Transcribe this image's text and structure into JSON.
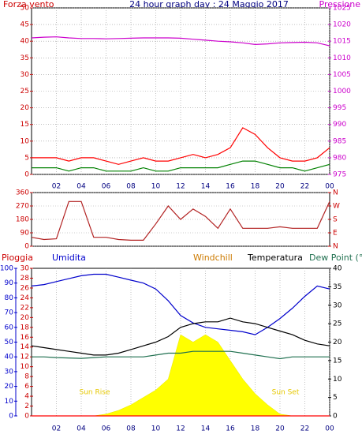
{
  "chart_data": [
    {
      "type": "line",
      "title": "24 hour graph day : 24 Maggio 2017",
      "x": [
        0,
        1,
        2,
        3,
        4,
        5,
        6,
        7,
        8,
        9,
        10,
        11,
        12,
        13,
        14,
        15,
        16,
        17,
        18,
        19,
        20,
        21,
        22,
        23,
        24
      ],
      "xlim": [
        0,
        24
      ],
      "xticks": [
        {
          "value": 2,
          "label": "02"
        },
        {
          "value": 4,
          "label": "04"
        },
        {
          "value": 6,
          "label": "06"
        },
        {
          "value": 8,
          "label": "08"
        },
        {
          "value": 10,
          "label": "10"
        },
        12,
        14,
        16,
        18,
        20,
        22,
        {
          "value": 24,
          "label": "00"
        }
      ],
      "ylim": [
        0,
        50
      ],
      "yticks": [
        0,
        5,
        10,
        15,
        20,
        25,
        30,
        35,
        40,
        45,
        50
      ],
      "ycolor": "#cc0000",
      "y2lim": [
        975,
        1025
      ],
      "y2ticks": [
        975,
        980,
        985,
        990,
        995,
        1000,
        1005,
        1010,
        1015,
        1020,
        1025
      ],
      "y2color": "#cc00cc",
      "grid": "both",
      "series": [
        {
          "name": "Forza vento",
          "color": "#ff0000",
          "values": [
            5,
            5,
            5,
            4,
            5,
            5,
            4,
            3,
            4,
            5,
            4,
            4,
            5,
            6,
            5,
            6,
            8,
            14,
            12,
            8,
            5,
            4,
            4,
            5,
            8
          ]
        },
        {
          "color": "#008000",
          "values": [
            2,
            2,
            2,
            1,
            2,
            2,
            1,
            1,
            1,
            2,
            1,
            1,
            2,
            2,
            2,
            2,
            3,
            4,
            4,
            3,
            2,
            2,
            1,
            2,
            3
          ]
        },
        {
          "name": "Pressione",
          "color": "#cc00cc",
          "axis": "y2",
          "values": [
            1016,
            1016.2,
            1016.3,
            1016,
            1015.8,
            1015.8,
            1015.7,
            1015.8,
            1015.9,
            1016,
            1016,
            1016,
            1015.9,
            1015.6,
            1015.3,
            1015,
            1014.8,
            1014.5,
            1014,
            1014.2,
            1014.5,
            1014.6,
            1014.7,
            1014.5,
            1013.6
          ]
        }
      ]
    },
    {
      "type": "line",
      "x": [
        0,
        1,
        2,
        3,
        4,
        5,
        6,
        7,
        8,
        9,
        10,
        11,
        12,
        13,
        14,
        15,
        16,
        17,
        18,
        19,
        20,
        21,
        22,
        23,
        24
      ],
      "xlim": [
        0,
        24
      ],
      "ylim": [
        0,
        360
      ],
      "yticks": [
        0,
        90,
        180,
        270,
        360
      ],
      "ycolor": "#cc0000",
      "y2lim": [
        0,
        360
      ],
      "y2ticks": [
        {
          "value": 0,
          "label": "N"
        },
        {
          "value": 90,
          "label": "E"
        },
        {
          "value": 180,
          "label": "S"
        },
        {
          "value": 270,
          "label": "W"
        },
        {
          "value": 360,
          "label": "N"
        }
      ],
      "y2color": "#cc0000",
      "grid": "both",
      "series": [
        {
          "color": "#b22222",
          "values": [
            60,
            45,
            50,
            300,
            300,
            60,
            60,
            45,
            40,
            40,
            150,
            270,
            180,
            250,
            200,
            120,
            250,
            120,
            120,
            120,
            130,
            120,
            120,
            120,
            300
          ]
        }
      ]
    },
    {
      "type": "line",
      "x": [
        0,
        1,
        2,
        3,
        4,
        5,
        6,
        7,
        8,
        9,
        10,
        11,
        12,
        13,
        14,
        15,
        16,
        17,
        18,
        19,
        20,
        21,
        22,
        23,
        24
      ],
      "xlim": [
        0,
        24
      ],
      "xticks": [
        {
          "value": 2,
          "label": "02"
        },
        {
          "value": 4,
          "label": "04"
        },
        {
          "value": 6,
          "label": "06"
        },
        {
          "value": 8,
          "label": "08"
        },
        {
          "value": 10,
          "label": "10"
        },
        12,
        14,
        16,
        18,
        20,
        22,
        {
          "value": 24,
          "label": "00"
        }
      ],
      "ylim": [
        0,
        30
      ],
      "yticks": [
        0,
        2,
        4,
        6,
        8,
        10,
        12,
        14,
        16,
        18,
        20,
        22,
        24,
        26,
        28,
        30
      ],
      "ycolor": "#cc0000",
      "y2lim": [
        0,
        40
      ],
      "y2ticks": [
        0,
        5,
        10,
        15,
        20,
        25,
        30,
        35,
        40
      ],
      "y2color": "#000000",
      "y3lim": [
        0,
        100
      ],
      "y3ticks": [
        0,
        10,
        20,
        30,
        40,
        50,
        60,
        70,
        80,
        90,
        100
      ],
      "y3color": "#0000cc",
      "grid": "x",
      "labels": [
        "Windchill"
      ],
      "annotations": [
        "Sun Rise",
        "Sun Set"
      ],
      "series": [
        {
          "type": "area",
          "color": "#ffff00",
          "axis": "y2",
          "values": [
            0,
            0,
            0,
            0,
            0,
            0,
            0.5,
            1.5,
            3,
            5,
            7,
            10,
            22,
            20,
            22,
            20,
            15,
            10,
            6,
            3,
            0.5,
            0,
            0,
            0,
            0
          ]
        },
        {
          "name": "Pioggia",
          "color": "#ff0000",
          "values": [
            0,
            0,
            0,
            0,
            0,
            0,
            0,
            0,
            0,
            0,
            0,
            0,
            0,
            0,
            0,
            0,
            0,
            0,
            0,
            0,
            0,
            0,
            0,
            0,
            0
          ]
        },
        {
          "name": "Umidita",
          "color": "#0000cc",
          "axis": "y3",
          "values": [
            88,
            89,
            91,
            93,
            95,
            96,
            96,
            94,
            92,
            90,
            86,
            78,
            68,
            63,
            60,
            59,
            58,
            57,
            55,
            60,
            66,
            73,
            81,
            88,
            86
          ]
        },
        {
          "name": "Temperatura",
          "color": "#000000",
          "axis": "y2",
          "values": [
            19,
            18.5,
            18,
            17.5,
            17,
            16.5,
            16.5,
            17,
            18,
            19,
            20,
            21.5,
            24,
            25,
            25.5,
            25.5,
            26.5,
            25.5,
            25,
            24,
            23,
            22,
            20.5,
            19.5,
            19
          ]
        },
        {
          "name": "Dew Point (°C",
          "color": "#207050",
          "axis": "y2",
          "values": [
            16,
            16,
            15.8,
            15.7,
            15.6,
            15.8,
            16,
            16,
            16,
            16,
            16.5,
            17,
            17,
            17.5,
            17.5,
            17.5,
            17.5,
            17,
            16.5,
            16,
            15.5,
            16,
            16,
            16,
            16
          ]
        }
      ]
    }
  ]
}
